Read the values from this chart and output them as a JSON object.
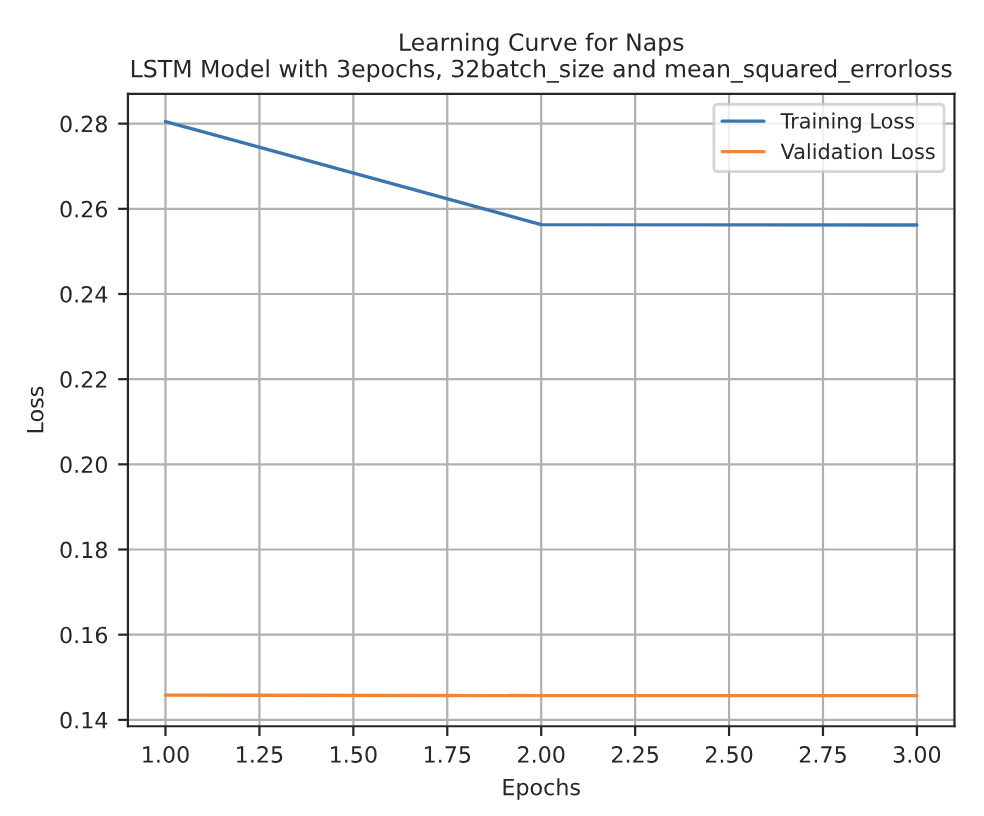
{
  "chart_data": {
    "type": "line",
    "title": "Learning Curve for Naps\nLSTM Model with 3epochs, 32batch_size and mean_squared_errorloss",
    "xlabel": "Epochs",
    "ylabel": "Loss",
    "x": [
      1,
      2,
      3
    ],
    "series": [
      {
        "name": "Training Loss",
        "color": "#3b75af",
        "values": [
          0.2805,
          0.2563,
          0.2562
        ]
      },
      {
        "name": "Validation Loss",
        "color": "#ef8636",
        "values": [
          0.1458,
          0.1457,
          0.1457
        ]
      }
    ],
    "xlim": [
      0.9,
      3.1
    ],
    "ylim": [
      0.1385,
      0.287
    ],
    "xticks": [
      {
        "value": 1.0,
        "label": "1.00"
      },
      {
        "value": 1.25,
        "label": "1.25"
      },
      {
        "value": 1.5,
        "label": "1.50"
      },
      {
        "value": 1.75,
        "label": "1.75"
      },
      {
        "value": 2.0,
        "label": "2.00"
      },
      {
        "value": 2.25,
        "label": "2.25"
      },
      {
        "value": 2.5,
        "label": "2.50"
      },
      {
        "value": 2.75,
        "label": "2.75"
      },
      {
        "value": 3.0,
        "label": "3.00"
      }
    ],
    "yticks": [
      {
        "value": 0.14,
        "label": "0.14"
      },
      {
        "value": 0.16,
        "label": "0.16"
      },
      {
        "value": 0.18,
        "label": "0.18"
      },
      {
        "value": 0.2,
        "label": "0.20"
      },
      {
        "value": 0.22,
        "label": "0.22"
      },
      {
        "value": 0.24,
        "label": "0.24"
      },
      {
        "value": 0.26,
        "label": "0.26"
      },
      {
        "value": 0.28,
        "label": "0.28"
      }
    ],
    "grid": true,
    "legend": "top right"
  }
}
